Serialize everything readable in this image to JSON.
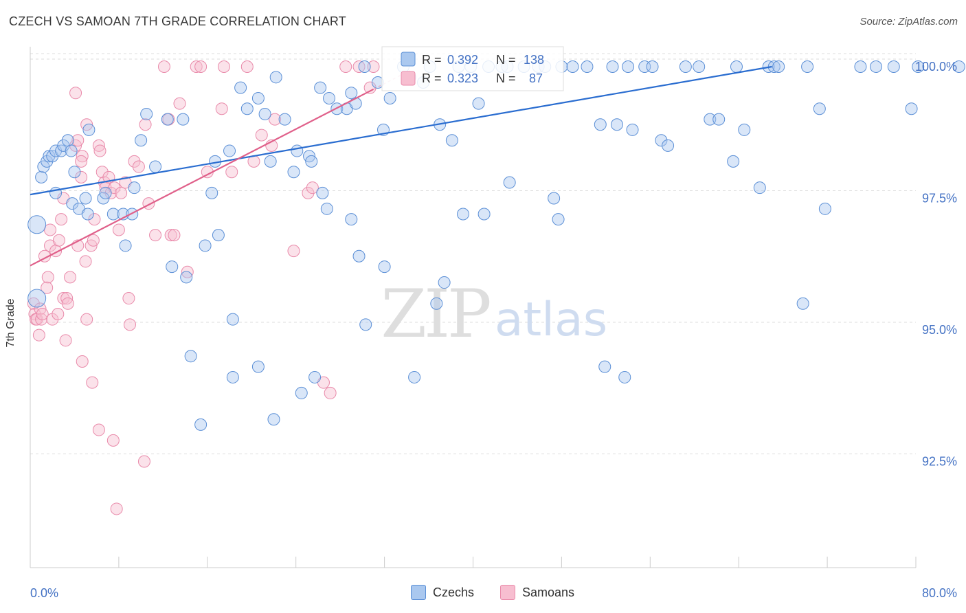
{
  "title": "CZECH VS SAMOAN 7TH GRADE CORRELATION CHART",
  "source": "Source: ZipAtlas.com",
  "watermark": {
    "zip": "ZIP",
    "atlas": "atlas"
  },
  "legend": {
    "stats": [
      {
        "r_label": "R =",
        "r_value": "0.392",
        "n_label": "N =",
        "n_value": "138"
      },
      {
        "r_label": "R =",
        "r_value": "0.323",
        "n_label": "N =",
        "n_value": "87"
      }
    ],
    "bottom": [
      "Czechs",
      "Samoans"
    ]
  },
  "colors": {
    "blue_fill": "#aac8ef",
    "blue_stroke": "#5b8fd6",
    "blue_line": "#2a6dd0",
    "pink_fill": "#f7bed0",
    "pink_stroke": "#e98aaa",
    "pink_line": "#e0608a",
    "tick_text": "#4472c4",
    "grid": "#dddddd"
  },
  "chart_data": {
    "type": "scatter",
    "title": "CZECH VS SAMOAN 7TH GRADE CORRELATION CHART",
    "xlabel": "",
    "ylabel": "7th Grade",
    "xlim": [
      0,
      80
    ],
    "ylim": [
      90.4,
      100.2
    ],
    "x_tick_labels": [
      "0.0%",
      "80.0%"
    ],
    "y_ticks": [
      92.5,
      95.0,
      97.5,
      100.0
    ],
    "y_tick_labels": [
      "92.5%",
      "95.0%",
      "97.5%",
      "100.0%"
    ],
    "legend_position": "top-center",
    "series": [
      {
        "name": "Czechs",
        "r": 0.392,
        "n": 138,
        "trend": {
          "x": [
            0,
            67.0
          ],
          "y": [
            97.57,
            100.0
          ]
        },
        "points": [
          [
            0.6,
            97.0
          ],
          [
            0.6,
            95.6
          ],
          [
            1.0,
            97.9
          ],
          [
            1.2,
            98.1
          ],
          [
            1.5,
            98.2
          ],
          [
            1.7,
            98.3
          ],
          [
            2.0,
            98.3
          ],
          [
            2.3,
            98.4
          ],
          [
            2.8,
            98.4
          ],
          [
            3.0,
            98.5
          ],
          [
            3.4,
            98.6
          ],
          [
            3.7,
            98.4
          ],
          [
            5.3,
            98.8
          ],
          [
            2.3,
            97.6
          ],
          [
            3.8,
            97.4
          ],
          [
            4.0,
            98.0
          ],
          [
            4.4,
            97.3
          ],
          [
            5.0,
            97.5
          ],
          [
            6.6,
            97.5
          ],
          [
            7.5,
            97.2
          ],
          [
            8.4,
            97.2
          ],
          [
            9.2,
            97.2
          ],
          [
            9.4,
            97.7
          ],
          [
            8.6,
            96.6
          ],
          [
            5.2,
            97.2
          ],
          [
            6.8,
            97.6
          ],
          [
            10.0,
            98.6
          ],
          [
            10.5,
            99.1
          ],
          [
            11.3,
            98.1
          ],
          [
            12.4,
            99.0
          ],
          [
            13.8,
            99.0
          ],
          [
            12.8,
            96.2
          ],
          [
            14.1,
            96.0
          ],
          [
            15.8,
            96.6
          ],
          [
            16.4,
            97.6
          ],
          [
            17.0,
            96.8
          ],
          [
            16.7,
            98.2
          ],
          [
            18.0,
            98.4
          ],
          [
            19.0,
            99.6
          ],
          [
            19.6,
            99.2
          ],
          [
            21.2,
            99.1
          ],
          [
            20.6,
            99.4
          ],
          [
            21.7,
            98.2
          ],
          [
            22.2,
            99.8
          ],
          [
            23.0,
            99.0
          ],
          [
            23.8,
            98.0
          ],
          [
            24.1,
            98.4
          ],
          [
            25.2,
            98.3
          ],
          [
            25.4,
            98.2
          ],
          [
            26.4,
            97.6
          ],
          [
            26.8,
            97.3
          ],
          [
            26.2,
            99.6
          ],
          [
            27.0,
            99.4
          ],
          [
            27.7,
            99.2
          ],
          [
            28.6,
            99.2
          ],
          [
            29.0,
            99.5
          ],
          [
            29.4,
            99.3
          ],
          [
            29.7,
            96.4
          ],
          [
            29.0,
            97.1
          ],
          [
            30.2,
            100.0
          ],
          [
            31.9,
            98.8
          ],
          [
            31.4,
            99.7
          ],
          [
            32.5,
            99.4
          ],
          [
            34.3,
            99.8
          ],
          [
            33.7,
            100.0
          ],
          [
            35.5,
            99.7
          ],
          [
            36.1,
            100.0
          ],
          [
            37.0,
            98.9
          ],
          [
            37.4,
            95.9
          ],
          [
            36.7,
            95.5
          ],
          [
            38.1,
            98.6
          ],
          [
            38.7,
            100.0
          ],
          [
            39.1,
            97.2
          ],
          [
            39.8,
            100.0
          ],
          [
            41.0,
            97.2
          ],
          [
            40.5,
            99.3
          ],
          [
            41.4,
            100.0
          ],
          [
            42.6,
            100.0
          ],
          [
            43.3,
            97.8
          ],
          [
            43.1,
            100.0
          ],
          [
            44.6,
            100.0
          ],
          [
            45.9,
            100.0
          ],
          [
            46.5,
            100.0
          ],
          [
            47.3,
            97.5
          ],
          [
            47.7,
            97.1
          ],
          [
            48.0,
            100.0
          ],
          [
            49.0,
            100.0
          ],
          [
            50.3,
            100.0
          ],
          [
            51.5,
            98.9
          ],
          [
            52.6,
            100.0
          ],
          [
            53.0,
            98.9
          ],
          [
            54.0,
            100.0
          ],
          [
            54.4,
            98.8
          ],
          [
            55.5,
            100.0
          ],
          [
            56.2,
            100.0
          ],
          [
            57.0,
            98.6
          ],
          [
            57.6,
            98.5
          ],
          [
            59.2,
            100.0
          ],
          [
            60.4,
            100.0
          ],
          [
            61.4,
            99.0
          ],
          [
            62.2,
            99.0
          ],
          [
            63.5,
            98.2
          ],
          [
            63.8,
            100.0
          ],
          [
            64.5,
            98.8
          ],
          [
            65.9,
            97.7
          ],
          [
            66.7,
            100.0
          ],
          [
            67.2,
            100.0
          ],
          [
            67.6,
            100.0
          ],
          [
            70.2,
            100.0
          ],
          [
            71.3,
            99.2
          ],
          [
            71.8,
            97.3
          ],
          [
            75.0,
            100.0
          ],
          [
            76.4,
            100.0
          ],
          [
            78.0,
            100.0
          ],
          [
            79.6,
            99.2
          ],
          [
            80.2,
            100.0
          ],
          [
            83.9,
            100.0
          ],
          [
            69.8,
            95.5
          ],
          [
            18.3,
            95.2
          ],
          [
            18.3,
            94.1
          ],
          [
            20.6,
            94.3
          ],
          [
            22.0,
            93.3
          ],
          [
            30.3,
            95.1
          ],
          [
            25.7,
            94.1
          ],
          [
            34.7,
            94.1
          ],
          [
            32.0,
            96.2
          ],
          [
            24.5,
            93.8
          ],
          [
            14.5,
            94.5
          ],
          [
            15.4,
            93.2
          ],
          [
            51.9,
            94.3
          ],
          [
            53.7,
            94.1
          ]
        ]
      },
      {
        "name": "Samoans",
        "r": 0.323,
        "n": 87,
        "trend": {
          "x": [
            0,
            31.0
          ],
          "y": [
            96.22,
            99.57
          ]
        },
        "points": [
          [
            0.3,
            95.5
          ],
          [
            0.4,
            95.3
          ],
          [
            0.5,
            95.2
          ],
          [
            0.6,
            95.2
          ],
          [
            0.9,
            95.4
          ],
          [
            0.8,
            94.9
          ],
          [
            1.0,
            95.2
          ],
          [
            1.1,
            95.3
          ],
          [
            1.3,
            96.4
          ],
          [
            1.6,
            96.0
          ],
          [
            1.5,
            95.8
          ],
          [
            1.8,
            96.6
          ],
          [
            1.8,
            96.9
          ],
          [
            2.0,
            95.2
          ],
          [
            2.3,
            96.5
          ],
          [
            2.5,
            95.3
          ],
          [
            2.6,
            96.7
          ],
          [
            2.8,
            97.1
          ],
          [
            3.0,
            95.6
          ],
          [
            3.0,
            97.5
          ],
          [
            3.2,
            94.8
          ],
          [
            3.3,
            95.6
          ],
          [
            3.4,
            95.5
          ],
          [
            3.6,
            96.0
          ],
          [
            4.1,
            98.5
          ],
          [
            4.3,
            98.6
          ],
          [
            4.7,
            98.3
          ],
          [
            4.6,
            98.2
          ],
          [
            4.3,
            96.6
          ],
          [
            4.6,
            97.9
          ],
          [
            5.0,
            96.3
          ],
          [
            5.1,
            95.2
          ],
          [
            5.5,
            96.6
          ],
          [
            5.7,
            96.7
          ],
          [
            5.8,
            97.1
          ],
          [
            6.2,
            98.5
          ],
          [
            6.3,
            98.4
          ],
          [
            6.5,
            98.0
          ],
          [
            6.7,
            97.8
          ],
          [
            6.8,
            97.7
          ],
          [
            7.1,
            97.9
          ],
          [
            7.3,
            97.6
          ],
          [
            7.6,
            97.7
          ],
          [
            8.0,
            96.9
          ],
          [
            8.2,
            97.6
          ],
          [
            8.6,
            97.8
          ],
          [
            8.9,
            95.6
          ],
          [
            9.0,
            95.1
          ],
          [
            9.4,
            98.2
          ],
          [
            9.8,
            98.1
          ],
          [
            10.4,
            98.9
          ],
          [
            10.7,
            97.4
          ],
          [
            11.3,
            96.8
          ],
          [
            12.1,
            100.0
          ],
          [
            12.5,
            99.0
          ],
          [
            12.7,
            96.8
          ],
          [
            13.0,
            96.8
          ],
          [
            13.5,
            99.3
          ],
          [
            14.2,
            96.1
          ],
          [
            15.0,
            100.0
          ],
          [
            15.4,
            100.0
          ],
          [
            16.0,
            98.0
          ],
          [
            17.3,
            99.2
          ],
          [
            17.5,
            100.0
          ],
          [
            18.2,
            98.0
          ],
          [
            19.6,
            100.0
          ],
          [
            20.2,
            98.2
          ],
          [
            20.9,
            98.7
          ],
          [
            21.8,
            98.5
          ],
          [
            22.1,
            99.0
          ],
          [
            23.8,
            96.5
          ],
          [
            25.1,
            97.6
          ],
          [
            25.5,
            97.7
          ],
          [
            26.5,
            94.0
          ],
          [
            27.1,
            93.8
          ],
          [
            28.5,
            100.0
          ],
          [
            29.7,
            100.0
          ],
          [
            30.7,
            99.6
          ],
          [
            31.0,
            100.0
          ],
          [
            4.7,
            94.4
          ],
          [
            5.6,
            94.0
          ],
          [
            6.2,
            93.1
          ],
          [
            7.5,
            92.9
          ],
          [
            7.8,
            91.6
          ],
          [
            10.3,
            92.5
          ],
          [
            4.1,
            99.5
          ],
          [
            5.1,
            98.9
          ]
        ]
      }
    ]
  }
}
